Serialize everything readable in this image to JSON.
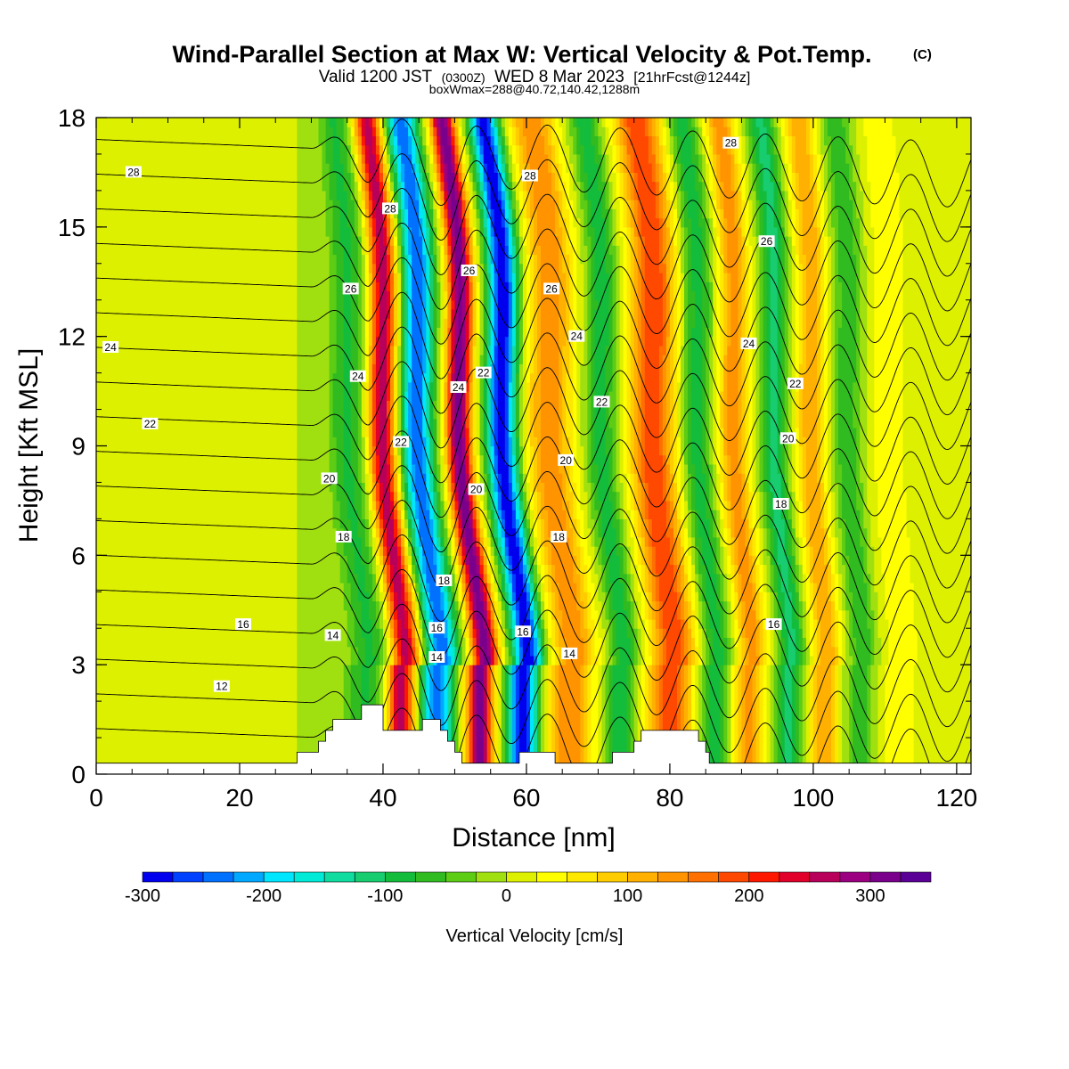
{
  "chart_data": {
    "type": "heatmap",
    "title": "Wind-Parallel Section at Max W: Vertical Velocity & Pot.Temp.",
    "title_mark": "(C)",
    "subtitle": {
      "valid": "Valid 1200 JST",
      "utc": "(0300Z)",
      "date": "WED 8 Mar 2023",
      "fcst": "[21hrFcst@1244z]"
    },
    "box_info": "boxWmax=288@40.72,140.42,1288m",
    "xlabel": "Distance [nm]",
    "ylabel": "Height [Kft MSL]",
    "xlim": [
      0,
      122
    ],
    "ylim": [
      0,
      18
    ],
    "x_ticks": [
      "0",
      "20",
      "40",
      "60",
      "80",
      "100",
      "120"
    ],
    "y_ticks": [
      "0",
      "3",
      "6",
      "9",
      "12",
      "15",
      "18"
    ],
    "colorbar": {
      "label": "Vertical Velocity [cm/s]",
      "range": [
        -300,
        350
      ],
      "step": 25,
      "tick_labels": [
        "-300",
        "-200",
        "-100",
        "0",
        "100",
        "200",
        "300"
      ],
      "colors": [
        "#0000ee",
        "#0040ff",
        "#0070ff",
        "#00a8ff",
        "#00e6ff",
        "#00ead8",
        "#10dca0",
        "#18cc70",
        "#14bc3c",
        "#30bb20",
        "#5ccc14",
        "#a0e010",
        "#dcf000",
        "#ffff00",
        "#ffe800",
        "#ffcc00",
        "#ffb000",
        "#ff9400",
        "#ff7000",
        "#ff4800",
        "#ff1800",
        "#e0002a",
        "#b8005a",
        "#9a0080",
        "#7a008c",
        "#5a0096"
      ]
    },
    "w_bands": [
      {
        "x": 37.5,
        "w": 2.6,
        "v": -80
      },
      {
        "x": 42.5,
        "w": 1.9,
        "v": 270
      },
      {
        "x": 47.5,
        "w": 2.2,
        "v": -250
      },
      {
        "x": 53.5,
        "w": 1.8,
        "v": 320
      },
      {
        "x": 59.5,
        "w": 2.0,
        "v": -300
      },
      {
        "x": 66.0,
        "w": 3.0,
        "v": 150
      },
      {
        "x": 73.0,
        "w": 2.0,
        "v": -90
      },
      {
        "x": 80.0,
        "w": 3.0,
        "v": 200
      },
      {
        "x": 86.0,
        "w": 2.0,
        "v": -90
      },
      {
        "x": 91.0,
        "w": 2.0,
        "v": 140
      },
      {
        "x": 96.5,
        "w": 1.8,
        "v": -110
      },
      {
        "x": 101.5,
        "w": 2.0,
        "v": 120
      },
      {
        "x": 106.5,
        "w": 2.0,
        "v": -70
      },
      {
        "x": 112.0,
        "w": 3.0,
        "v": 40
      }
    ],
    "theta_contours": {
      "levels_K": [
        11,
        12,
        13,
        14,
        15,
        16,
        17,
        18,
        19,
        20,
        21,
        22,
        23,
        24,
        25,
        26,
        27,
        28
      ],
      "labels": [
        {
          "text": "28",
          "x": 5.2,
          "y": 16.5
        },
        {
          "text": "24",
          "x": 2.0,
          "y": 11.7
        },
        {
          "text": "22",
          "x": 7.5,
          "y": 9.6
        },
        {
          "text": "16",
          "x": 20.5,
          "y": 4.1
        },
        {
          "text": "12",
          "x": 17.5,
          "y": 2.4
        },
        {
          "text": "20",
          "x": 32.5,
          "y": 8.1
        },
        {
          "text": "18",
          "x": 34.5,
          "y": 6.5
        },
        {
          "text": "14",
          "x": 33.0,
          "y": 3.8
        },
        {
          "text": "26",
          "x": 35.5,
          "y": 13.3
        },
        {
          "text": "24",
          "x": 36.5,
          "y": 10.9
        },
        {
          "text": "28",
          "x": 41.0,
          "y": 15.5
        },
        {
          "text": "22",
          "x": 42.5,
          "y": 9.1
        },
        {
          "text": "26",
          "x": 52.0,
          "y": 13.8
        },
        {
          "text": "24",
          "x": 50.5,
          "y": 10.6
        },
        {
          "text": "22",
          "x": 54.0,
          "y": 11.0
        },
        {
          "text": "20",
          "x": 53.0,
          "y": 7.8
        },
        {
          "text": "18",
          "x": 48.5,
          "y": 5.3
        },
        {
          "text": "16",
          "x": 47.5,
          "y": 4.0
        },
        {
          "text": "14",
          "x": 47.5,
          "y": 3.2
        },
        {
          "text": "28",
          "x": 60.5,
          "y": 16.4
        },
        {
          "text": "26",
          "x": 63.5,
          "y": 13.3
        },
        {
          "text": "24",
          "x": 67.0,
          "y": 12.0
        },
        {
          "text": "22",
          "x": 70.5,
          "y": 10.2
        },
        {
          "text": "20",
          "x": 65.5,
          "y": 8.6
        },
        {
          "text": "18",
          "x": 64.5,
          "y": 6.5
        },
        {
          "text": "16",
          "x": 59.5,
          "y": 3.9
        },
        {
          "text": "14",
          "x": 66.0,
          "y": 3.3
        },
        {
          "text": "28",
          "x": 88.5,
          "y": 17.3
        },
        {
          "text": "26",
          "x": 93.5,
          "y": 14.6
        },
        {
          "text": "24",
          "x": 91.0,
          "y": 11.8
        },
        {
          "text": "22",
          "x": 97.5,
          "y": 10.7
        },
        {
          "text": "20",
          "x": 96.5,
          "y": 9.2
        },
        {
          "text": "18",
          "x": 95.5,
          "y": 7.4
        },
        {
          "text": "16",
          "x": 94.5,
          "y": 4.1
        }
      ]
    },
    "terrain": [
      [
        0,
        0.3
      ],
      [
        28,
        0.3
      ],
      [
        28,
        0.6
      ],
      [
        31,
        0.6
      ],
      [
        31,
        0.9
      ],
      [
        32,
        0.9
      ],
      [
        32,
        1.2
      ],
      [
        33,
        1.2
      ],
      [
        33,
        1.5
      ],
      [
        37,
        1.5
      ],
      [
        37,
        1.9
      ],
      [
        40,
        1.9
      ],
      [
        40,
        1.2
      ],
      [
        45.5,
        1.2
      ],
      [
        45.5,
        1.5
      ],
      [
        48,
        1.5
      ],
      [
        48,
        1.2
      ],
      [
        49,
        1.2
      ],
      [
        49,
        0.9
      ],
      [
        50,
        0.9
      ],
      [
        50,
        0.6
      ],
      [
        51,
        0.6
      ],
      [
        51,
        0.3
      ],
      [
        59,
        0.3
      ],
      [
        59,
        0.6
      ],
      [
        64,
        0.6
      ],
      [
        64,
        0.3
      ],
      [
        72,
        0.3
      ],
      [
        72,
        0.6
      ],
      [
        75,
        0.6
      ],
      [
        75,
        0.9
      ],
      [
        76,
        0.9
      ],
      [
        76,
        1.2
      ],
      [
        84,
        1.2
      ],
      [
        84,
        0.9
      ],
      [
        85,
        0.9
      ],
      [
        85,
        0.6
      ],
      [
        85.5,
        0.6
      ],
      [
        85.5,
        0.3
      ],
      [
        122,
        0.3
      ]
    ]
  }
}
